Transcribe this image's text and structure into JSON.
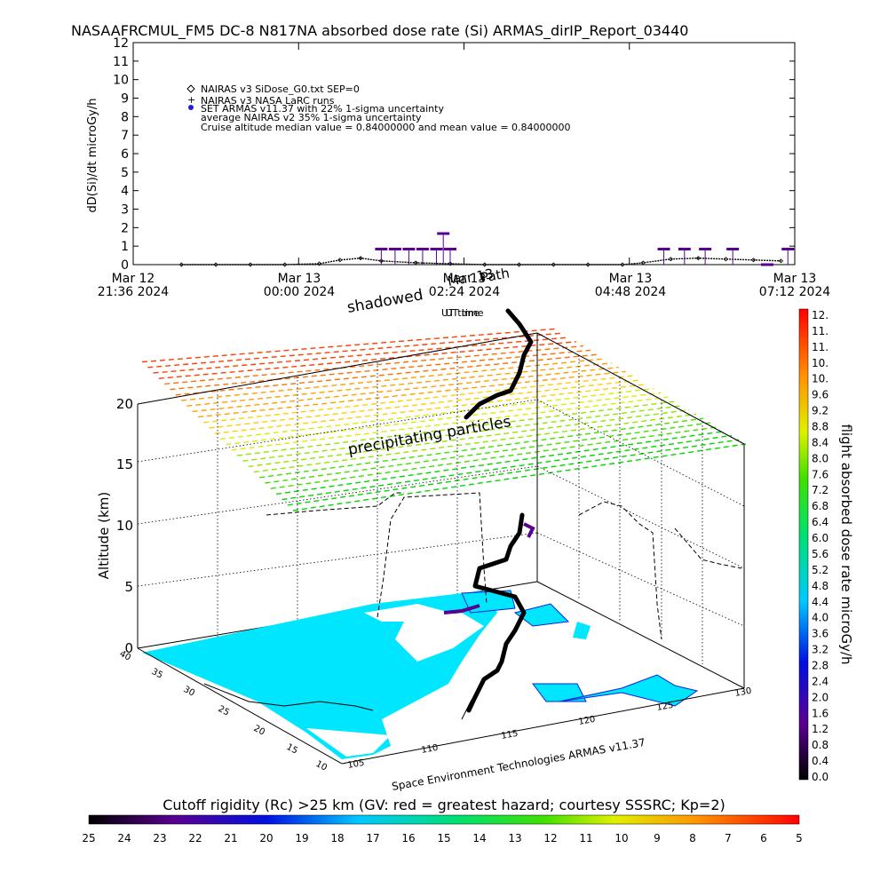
{
  "title": "NASAAFRCMUL_FM5 DC-8   N817NA absorbed dose rate (Si) ARMAS_dirIP_Report_03440",
  "chart_data": [
    {
      "type": "line",
      "ylabel": "dD(Si)/dt microGy/h",
      "xlabel": "UT time",
      "ylim": [
        0,
        12
      ],
      "yticks": [
        "0",
        "1",
        "2",
        "3",
        "4",
        "5",
        "6",
        "7",
        "8",
        "9",
        "10",
        "11",
        "12"
      ],
      "xticks": [
        {
          "date": "Mar 12",
          "time": "21:36 2024"
        },
        {
          "date": "Mar 13",
          "time": "00:00 2024"
        },
        {
          "date": "Mar 13",
          "time": "02:24 2024"
        },
        {
          "date": "Mar 13",
          "time": "04:48 2024"
        },
        {
          "date": "Mar 13",
          "time": "07:12 2024"
        }
      ],
      "legend": [
        {
          "symbol": "diamond",
          "label": "NAIRAS v3 SiDose_G0.txt SEP=0"
        },
        {
          "symbol": "plus",
          "label": "NAIRAS v3 NASA LaRC runs"
        },
        {
          "symbol": "dot",
          "label": "SET ARMAS v11.37 with 22% 1-sigma uncertainty"
        },
        {
          "symbol": "none",
          "label": "average NAIRAS v2 35% 1-sigma uncertainty"
        },
        {
          "symbol": "none",
          "label": "Cruise altitude median value = 0.84000000 and mean value = 0.84000000"
        }
      ],
      "series": [
        {
          "name": "NAIRAS v3 SiDose_G0.txt SEP=0",
          "x": [
            "2024-03-12T22:18",
            "2024-03-12T22:48",
            "2024-03-12T23:18",
            "2024-03-12T23:48",
            "2024-03-13T00:18",
            "2024-03-13T00:36",
            "2024-03-13T00:54",
            "2024-03-13T01:12",
            "2024-03-13T01:42",
            "2024-03-13T02:12",
            "2024-03-13T02:42",
            "2024-03-13T03:12",
            "2024-03-13T03:42",
            "2024-03-13T04:12",
            "2024-03-13T04:42",
            "2024-03-13T05:00",
            "2024-03-13T05:24",
            "2024-03-13T05:48",
            "2024-03-13T06:12",
            "2024-03-13T06:36",
            "2024-03-13T07:00"
          ],
          "values": [
            0.0,
            0.0,
            0.0,
            0.0,
            0.05,
            0.25,
            0.35,
            0.2,
            0.1,
            0.05,
            0.0,
            0.0,
            0.0,
            0.0,
            0.0,
            0.1,
            0.3,
            0.35,
            0.3,
            0.25,
            0.2
          ]
        },
        {
          "name": "SET ARMAS v11.37",
          "x": [
            "2024-03-13T01:12",
            "2024-03-13T01:24",
            "2024-03-13T01:36",
            "2024-03-13T01:48",
            "2024-03-13T02:00",
            "2024-03-13T02:06",
            "2024-03-13T02:12",
            "2024-03-13T05:18",
            "2024-03-13T05:36",
            "2024-03-13T05:54",
            "2024-03-13T06:18",
            "2024-03-13T06:48",
            "2024-03-13T07:06"
          ],
          "values": [
            0.84,
            0.84,
            0.84,
            0.84,
            0.84,
            1.68,
            0.84,
            0.84,
            0.84,
            0.84,
            0.84,
            0.0,
            0.84
          ]
        }
      ]
    },
    {
      "type": "scatter",
      "zlabel": "Altitude (km)",
      "zticks": [
        "0",
        "5",
        "10",
        "15",
        "20"
      ],
      "xticks": [
        "105",
        "110",
        "115",
        "120",
        "125",
        "130"
      ],
      "yticks": [
        "10",
        "15",
        "20",
        "25",
        "30",
        "35",
        "40"
      ],
      "annotations": [
        "shadowed",
        "Mar 13",
        "Path",
        "precipitating particles",
        "UT time"
      ],
      "caption": "Space Environment Technologies ARMAS v11.37",
      "colorbar": {
        "label": "flight absorbed dose rate microGy/h",
        "ticks": [
          "12.",
          "11.",
          "11.",
          "10.",
          "10.",
          "9.6",
          "9.2",
          "8.8",
          "8.4",
          "8.0",
          "7.6",
          "7.2",
          "6.8",
          "6.4",
          "6.0",
          "5.6",
          "5.2",
          "4.8",
          "4.4",
          "4.0",
          "3.6",
          "3.2",
          "2.8",
          "2.4",
          "2.0",
          "1.6",
          "1.2",
          "0.8",
          "0.4",
          "0.0"
        ]
      }
    },
    {
      "type": "colorbar",
      "label": "Cutoff rigidity (Rc) >25 km (GV: red = greatest hazard; courtesy SSSRC; Kp=2)",
      "ticks": [
        "25",
        "24",
        "23",
        "22",
        "21",
        "20",
        "19",
        "18",
        "17",
        "16",
        "15",
        "14",
        "13",
        "12",
        "11",
        "10",
        "9",
        "8",
        "7",
        "6",
        "5"
      ]
    }
  ]
}
